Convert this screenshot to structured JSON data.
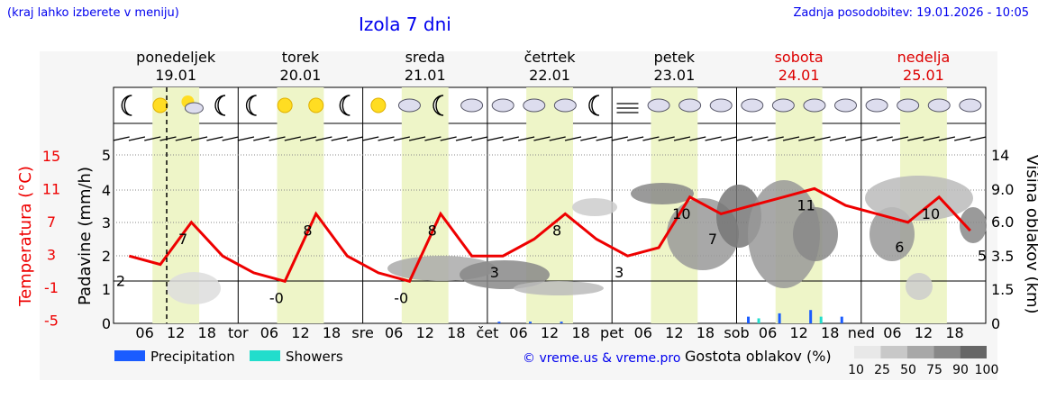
{
  "header": {
    "hint": "(kraj lahko izberete v meniju)",
    "title": "Izola 7 dni",
    "updated": "Zadnja posodobitev: 19.01.2026 - 10:05"
  },
  "days": [
    {
      "name": "ponedeljek",
      "date": "19.01",
      "weekend": false,
      "abbr": ""
    },
    {
      "name": "torek",
      "date": "20.01",
      "weekend": false,
      "abbr": "tor"
    },
    {
      "name": "sreda",
      "date": "21.01",
      "weekend": false,
      "abbr": "sre"
    },
    {
      "name": "četrtek",
      "date": "22.01",
      "weekend": false,
      "abbr": "čet"
    },
    {
      "name": "petek",
      "date": "23.01",
      "weekend": false,
      "abbr": "pet"
    },
    {
      "name": "sobota",
      "date": "24.01",
      "weekend": true,
      "abbr": "sob"
    },
    {
      "name": "nedelja",
      "date": "25.01",
      "weekend": true,
      "abbr": "ned"
    }
  ],
  "axes": {
    "left_temp_label": "Temperatura (°C)",
    "left_temp_ticks": [
      "15",
      "11",
      "7",
      "3",
      "-1",
      "-5"
    ],
    "left_precip_label": "Padavine (mm/h)",
    "left_precip_ticks": [
      "5",
      "4",
      "3",
      "2",
      "1",
      "0"
    ],
    "right_label": "Višina oblakov (km)",
    "right_ticks": [
      "14",
      "9.0",
      "6.0",
      "3.5",
      "1.5",
      "0"
    ],
    "hour_ticks": [
      "06",
      "12",
      "18"
    ]
  },
  "legend": {
    "precipitation": "Precipitation",
    "showers": "Showers",
    "credit": "© vreme.us & vreme.pro",
    "cloud_density_label": "Gostota oblakov (%)",
    "cloud_density_ticks": [
      "10",
      "25",
      "50",
      "75",
      "90",
      "100"
    ]
  },
  "colors": {
    "temperature": "#ee0000",
    "precipitation": "#1a5cff",
    "showers": "#22ddcc",
    "day_band": "#eef5c8",
    "link": "#0000ee",
    "weekend": "#dd0000"
  },
  "chart_data": {
    "type": "line",
    "title": "Izola 7 dni",
    "xlabel": "",
    "ylabel": "Temperatura (°C)",
    "ylim": [
      -5,
      15
    ],
    "x": [
      "19.01 00",
      "19.01 06",
      "19.01 12",
      "19.01 18",
      "20.01 00",
      "20.01 06",
      "20.01 12",
      "20.01 18",
      "21.01 00",
      "21.01 06",
      "21.01 12",
      "21.01 18",
      "22.01 00",
      "22.01 06",
      "22.01 12",
      "22.01 18",
      "23.01 00",
      "23.01 06",
      "23.01 12",
      "23.01 18",
      "24.01 00",
      "24.01 06",
      "24.01 12",
      "24.01 18",
      "25.01 00",
      "25.01 06",
      "25.01 12",
      "25.01 18"
    ],
    "series": [
      {
        "name": "Temperature (°C)",
        "values": [
          3,
          2,
          7,
          3,
          1,
          0,
          8,
          3,
          1,
          0,
          8,
          3,
          3,
          5,
          8,
          5,
          3,
          4,
          10,
          8,
          9,
          10,
          11,
          9,
          8,
          7,
          10,
          6
        ]
      },
      {
        "name": "Precipitation (mm/h)",
        "values": [
          0,
          0,
          0,
          0,
          0,
          0,
          0,
          0,
          0,
          0,
          0,
          0,
          0.05,
          0.05,
          0.05,
          0,
          0,
          0,
          0,
          0,
          0.2,
          0.3,
          0.4,
          0.2,
          0,
          0,
          0,
          0
        ]
      },
      {
        "name": "Showers (mm/h)",
        "values": [
          0,
          0,
          0,
          0,
          0,
          0,
          0,
          0,
          0,
          0,
          0,
          0,
          0,
          0,
          0,
          0,
          0,
          0,
          0,
          0,
          0.15,
          0,
          0.2,
          0,
          0,
          0,
          0,
          0
        ]
      }
    ],
    "annotations": [
      {
        "x": "19.01 00",
        "label": "2"
      },
      {
        "x": "19.01 12",
        "label": "7"
      },
      {
        "x": "20.01 06",
        "label": "-0"
      },
      {
        "x": "20.01 12",
        "label": "8"
      },
      {
        "x": "21.01 06",
        "label": "-0"
      },
      {
        "x": "21.01 12",
        "label": "8"
      },
      {
        "x": "22.01 00",
        "label": "3"
      },
      {
        "x": "22.01 12",
        "label": "8"
      },
      {
        "x": "23.01 00",
        "label": "3"
      },
      {
        "x": "23.01 12",
        "label": "10"
      },
      {
        "x": "23.01 18",
        "label": "7"
      },
      {
        "x": "24.01 12",
        "label": "11"
      },
      {
        "x": "25.01 06",
        "label": "6"
      },
      {
        "x": "25.01 12",
        "label": "10"
      },
      {
        "x": "25.01 24",
        "label": "5"
      }
    ],
    "grid": true,
    "legend_position": "bottom"
  }
}
